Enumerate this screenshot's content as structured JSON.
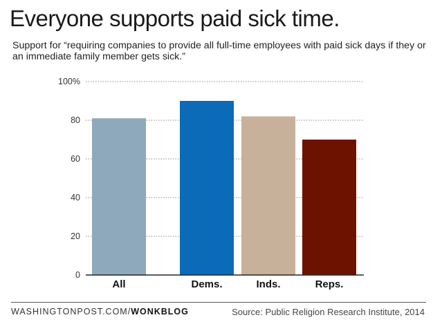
{
  "chart_data": {
    "type": "bar",
    "title": "Everyone supports paid sick time.",
    "subtitle": "Support for “requiring companies to provide all full-time employees with paid sick days if they or an immediate family member gets sick.”",
    "categories": [
      "All",
      "Dems.",
      "Inds.",
      "Reps."
    ],
    "values": [
      81,
      90,
      82,
      70
    ],
    "colors": [
      "#8ea9bb",
      "#0b6bb8",
      "#c8b19a",
      "#6e1200"
    ],
    "ylim": [
      0,
      100
    ],
    "yticks": [
      0,
      20,
      40,
      60,
      80,
      100
    ],
    "ytick_labels": [
      "0",
      "20",
      "40",
      "60",
      "80",
      "100%"
    ],
    "xlabel": "",
    "ylabel": "",
    "grid": true
  },
  "footer": {
    "credit_prefix": "WASHINGTONPOST.COM/",
    "credit_blog": "WONKBLOG",
    "source": "Source: Public Religion Research Institute, 2014"
  }
}
